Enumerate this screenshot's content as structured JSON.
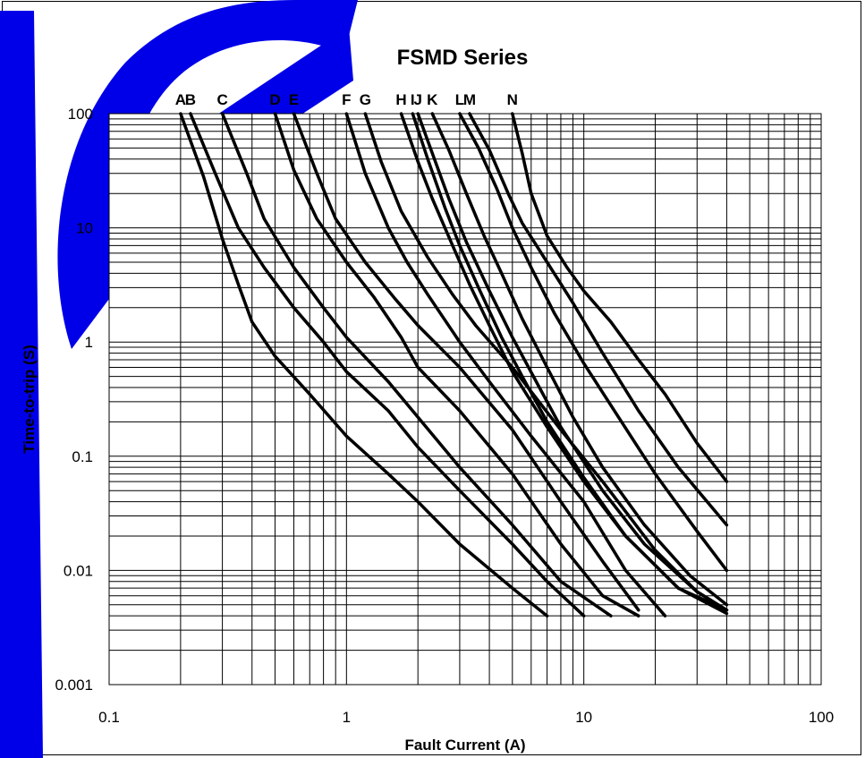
{
  "chart_data": {
    "type": "line",
    "title": "FSMD Series",
    "xlabel": "Fault Current (A)",
    "ylabel": "Time-to-trip (S)",
    "xscale": "log",
    "yscale": "log",
    "xlim": [
      0.1,
      100
    ],
    "ylim": [
      0.001,
      100
    ],
    "x_tick_labels": [
      "0.1",
      "1",
      "10",
      "100"
    ],
    "y_tick_labels": [
      "100",
      "10",
      "1",
      "0.1",
      "0.01",
      "0.001"
    ],
    "grid": true,
    "line_color": "#000000",
    "series": [
      {
        "name": "A",
        "points": [
          [
            0.2,
            100
          ],
          [
            0.25,
            28
          ],
          [
            0.3,
            8
          ],
          [
            0.35,
            3.2
          ],
          [
            0.4,
            1.5
          ],
          [
            0.5,
            0.75
          ],
          [
            0.7,
            0.35
          ],
          [
            1,
            0.15
          ],
          [
            1.5,
            0.07
          ],
          [
            2,
            0.04
          ],
          [
            3,
            0.017
          ],
          [
            5,
            0.007
          ],
          [
            7,
            0.004
          ]
        ]
      },
      {
        "name": "B",
        "points": [
          [
            0.22,
            100
          ],
          [
            0.28,
            30
          ],
          [
            0.35,
            10
          ],
          [
            0.45,
            4.5
          ],
          [
            0.6,
            2
          ],
          [
            0.8,
            1
          ],
          [
            1,
            0.55
          ],
          [
            1.5,
            0.25
          ],
          [
            2,
            0.12
          ],
          [
            3,
            0.05
          ],
          [
            5,
            0.017
          ],
          [
            7,
            0.008
          ],
          [
            10,
            0.004
          ]
        ]
      },
      {
        "name": "C",
        "points": [
          [
            0.3,
            100
          ],
          [
            0.38,
            30
          ],
          [
            0.45,
            12
          ],
          [
            0.6,
            4.5
          ],
          [
            0.8,
            2
          ],
          [
            1,
            1.1
          ],
          [
            1.5,
            0.45
          ],
          [
            2,
            0.22
          ],
          [
            3,
            0.08
          ],
          [
            5,
            0.025
          ],
          [
            8,
            0.008
          ],
          [
            13,
            0.004
          ]
        ]
      },
      {
        "name": "D",
        "points": [
          [
            0.5,
            100
          ],
          [
            0.6,
            32
          ],
          [
            0.75,
            12
          ],
          [
            1,
            5
          ],
          [
            1.3,
            2.5
          ],
          [
            1.7,
            1.1
          ],
          [
            2,
            0.6
          ],
          [
            3,
            0.25
          ],
          [
            5,
            0.07
          ],
          [
            8,
            0.017
          ],
          [
            12,
            0.006
          ],
          [
            17,
            0.004
          ]
        ]
      },
      {
        "name": "E",
        "points": [
          [
            0.6,
            100
          ],
          [
            0.75,
            30
          ],
          [
            0.9,
            12
          ],
          [
            1.2,
            5
          ],
          [
            1.6,
            2.4
          ],
          [
            2,
            1.4
          ],
          [
            3,
            0.6
          ],
          [
            5,
            0.17
          ],
          [
            8,
            0.04
          ],
          [
            12,
            0.012
          ],
          [
            17,
            0.0045
          ]
        ]
      },
      {
        "name": "F",
        "points": [
          [
            1,
            100
          ],
          [
            1.2,
            30
          ],
          [
            1.5,
            10
          ],
          [
            1.8,
            5
          ],
          [
            2.2,
            2.6
          ],
          [
            3,
            1
          ],
          [
            4,
            0.45
          ],
          [
            6,
            0.15
          ],
          [
            10,
            0.04
          ],
          [
            15,
            0.01
          ],
          [
            22,
            0.004
          ]
        ]
      },
      {
        "name": "G",
        "points": [
          [
            1.2,
            100
          ],
          [
            1.4,
            38
          ],
          [
            1.7,
            14
          ],
          [
            2.2,
            5.5
          ],
          [
            2.8,
            2.6
          ],
          [
            3.5,
            1.4
          ],
          [
            5,
            0.6
          ],
          [
            8,
            0.17
          ],
          [
            12,
            0.06
          ],
          [
            20,
            0.015
          ],
          [
            30,
            0.0065
          ],
          [
            40,
            0.0045
          ]
        ]
      },
      {
        "name": "H",
        "points": [
          [
            1.7,
            100
          ],
          [
            2,
            38
          ],
          [
            2.3,
            18
          ],
          [
            2.8,
            7
          ],
          [
            3.3,
            3.2
          ],
          [
            4,
            1.4
          ],
          [
            5,
            0.55
          ],
          [
            7,
            0.18
          ],
          [
            10,
            0.06
          ],
          [
            15,
            0.02
          ],
          [
            25,
            0.007
          ],
          [
            40,
            0.0045
          ]
        ]
      },
      {
        "name": "I",
        "points": [
          [
            1.9,
            100
          ],
          [
            2.2,
            40
          ],
          [
            2.6,
            15
          ],
          [
            3,
            7
          ],
          [
            3.6,
            3
          ],
          [
            4.5,
            1.1
          ],
          [
            5.5,
            0.5
          ],
          [
            7,
            0.2
          ],
          [
            10,
            0.065
          ],
          [
            15,
            0.02
          ],
          [
            25,
            0.007
          ],
          [
            40,
            0.0042
          ]
        ]
      },
      {
        "name": "J",
        "points": [
          [
            2,
            100
          ],
          [
            2.3,
            45
          ],
          [
            2.7,
            18
          ],
          [
            3.2,
            7.5
          ],
          [
            4,
            2.8
          ],
          [
            5,
            1.1
          ],
          [
            6.5,
            0.4
          ],
          [
            8,
            0.18
          ],
          [
            12,
            0.05
          ],
          [
            18,
            0.017
          ],
          [
            30,
            0.0065
          ],
          [
            40,
            0.0045
          ]
        ]
      },
      {
        "name": "K",
        "points": [
          [
            2.3,
            100
          ],
          [
            2.7,
            48
          ],
          [
            3.2,
            20
          ],
          [
            3.8,
            8.5
          ],
          [
            4.5,
            4
          ],
          [
            5.5,
            1.6
          ],
          [
            7,
            0.6
          ],
          [
            9,
            0.22
          ],
          [
            12,
            0.08
          ],
          [
            18,
            0.025
          ],
          [
            28,
            0.009
          ],
          [
            40,
            0.005
          ]
        ]
      },
      {
        "name": "L",
        "points": [
          [
            3,
            100
          ],
          [
            3.6,
            50
          ],
          [
            4.3,
            22
          ],
          [
            5,
            10
          ],
          [
            6,
            4.5
          ],
          [
            7.5,
            1.8
          ],
          [
            10,
            0.65
          ],
          [
            14,
            0.22
          ],
          [
            20,
            0.07
          ],
          [
            30,
            0.022
          ],
          [
            40,
            0.01
          ]
        ]
      },
      {
        "name": "M",
        "points": [
          [
            3.3,
            100
          ],
          [
            4,
            48
          ],
          [
            4.8,
            20
          ],
          [
            5.5,
            11
          ],
          [
            7,
            5
          ],
          [
            9,
            2.2
          ],
          [
            12,
            0.8
          ],
          [
            17,
            0.25
          ],
          [
            25,
            0.08
          ],
          [
            40,
            0.025
          ]
        ]
      },
      {
        "name": "N",
        "points": [
          [
            5,
            100
          ],
          [
            5.5,
            45
          ],
          [
            6,
            20
          ],
          [
            7,
            8.5
          ],
          [
            8.5,
            4.5
          ],
          [
            10,
            2.8
          ],
          [
            13,
            1.5
          ],
          [
            17,
            0.7
          ],
          [
            22,
            0.35
          ],
          [
            30,
            0.13
          ],
          [
            40,
            0.06
          ]
        ]
      }
    ]
  }
}
